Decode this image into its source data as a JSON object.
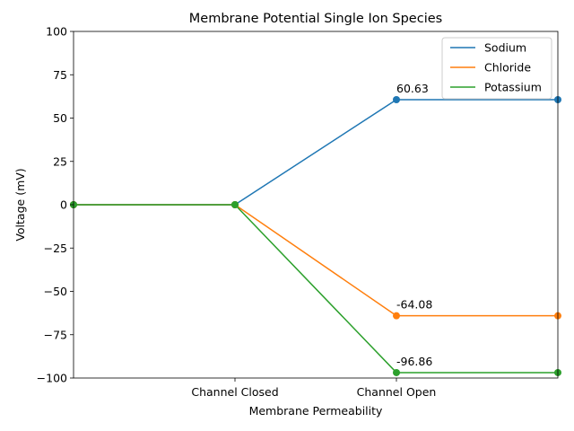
{
  "chart_data": {
    "type": "line",
    "title": "Membrane Potential Single Ion Species",
    "xlabel": "Membrane Permeability",
    "ylabel": "Voltage (mV)",
    "x": [
      0,
      1,
      2,
      3
    ],
    "xlim": [
      0,
      3
    ],
    "xticks": [
      {
        "x": 1,
        "label": "Channel Closed"
      },
      {
        "x": 2,
        "label": "Channel Open"
      }
    ],
    "ylim": [
      -100,
      100
    ],
    "yticks": [
      100,
      75,
      50,
      25,
      0,
      -25,
      -50,
      -75,
      -100
    ],
    "ytick_labels": [
      "100",
      "75",
      "50",
      "25",
      "0",
      "−25",
      "−50",
      "−75",
      "−100"
    ],
    "grid": false,
    "legend_position": "top-right",
    "series": [
      {
        "name": "Sodium",
        "color": "#1f77b4",
        "values": [
          0,
          0,
          60.63,
          60.63
        ]
      },
      {
        "name": "Chloride",
        "color": "#ff7f0e",
        "values": [
          0,
          0,
          -64.08,
          -64.08
        ]
      },
      {
        "name": "Potassium",
        "color": "#2ca02c",
        "values": [
          0,
          0,
          -96.86,
          -96.86
        ]
      }
    ],
    "annotations": [
      {
        "x": 2,
        "y": 60.63,
        "text": "60.63"
      },
      {
        "x": 2,
        "y": -64.08,
        "text": "-64.08"
      },
      {
        "x": 2,
        "y": -96.86,
        "text": "-96.86"
      }
    ]
  }
}
